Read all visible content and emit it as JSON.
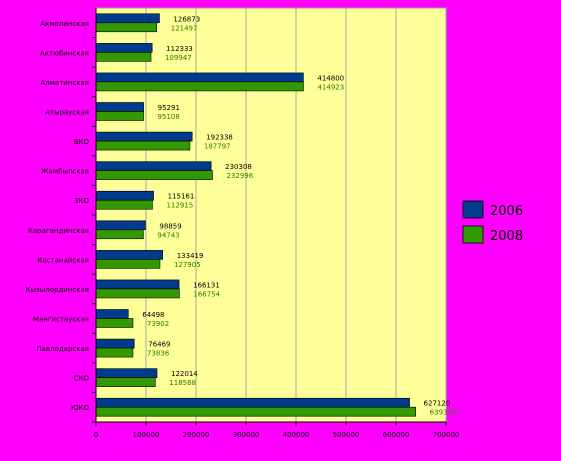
{
  "chart_data": {
    "type": "bar",
    "orientation": "horizontal",
    "title": "",
    "xlabel": "",
    "ylabel": "",
    "categories": [
      "Акмолинская",
      "Актюбинская",
      "Алматинская",
      "Атырауская",
      "ВКО",
      "Жамбылская",
      "ЗКО",
      "Карагандинская",
      "Костанайская",
      "Кызылординская",
      "Мангистауская",
      "Павлодарская",
      "СКО",
      "ЮКО"
    ],
    "series": [
      {
        "name": "2006",
        "color": "#003b8c",
        "values": [
          126873,
          112333,
          414800,
          95291,
          192338,
          230308,
          115161,
          98859,
          133419,
          166131,
          64498,
          76469,
          122014,
          627120
        ]
      },
      {
        "name": "2008",
        "color": "#339900",
        "values": [
          121497,
          109947,
          414923,
          95108,
          187797,
          232996,
          112915,
          94743,
          127905,
          166754,
          73902,
          73836,
          118568,
          639340
        ]
      }
    ],
    "value_labels": {
      "2006": [
        "126873",
        "112333",
        "414800",
        "95291",
        "192338",
        "230308",
        "115161",
        "98859",
        "133419",
        "166131",
        "64498",
        "76469",
        "122014",
        "627120"
      ],
      "2008": [
        "121497",
        "109947",
        "414923",
        "95108",
        "187797",
        "232996",
        "112915",
        "94743",
        "127905",
        "166754",
        "73902",
        "73836",
        "118568",
        "639340"
      ]
    },
    "xlim": [
      0,
      700000
    ],
    "xticks": [
      0,
      100000,
      200000,
      300000,
      400000,
      500000,
      600000,
      700000
    ],
    "xtick_labels": [
      "0",
      "100000",
      "200000",
      "300000",
      "400000",
      "500000",
      "600000",
      "700000"
    ],
    "grid": true,
    "legend": "right",
    "plot_background": "#ffff99",
    "page_background": "#ff00ff"
  }
}
